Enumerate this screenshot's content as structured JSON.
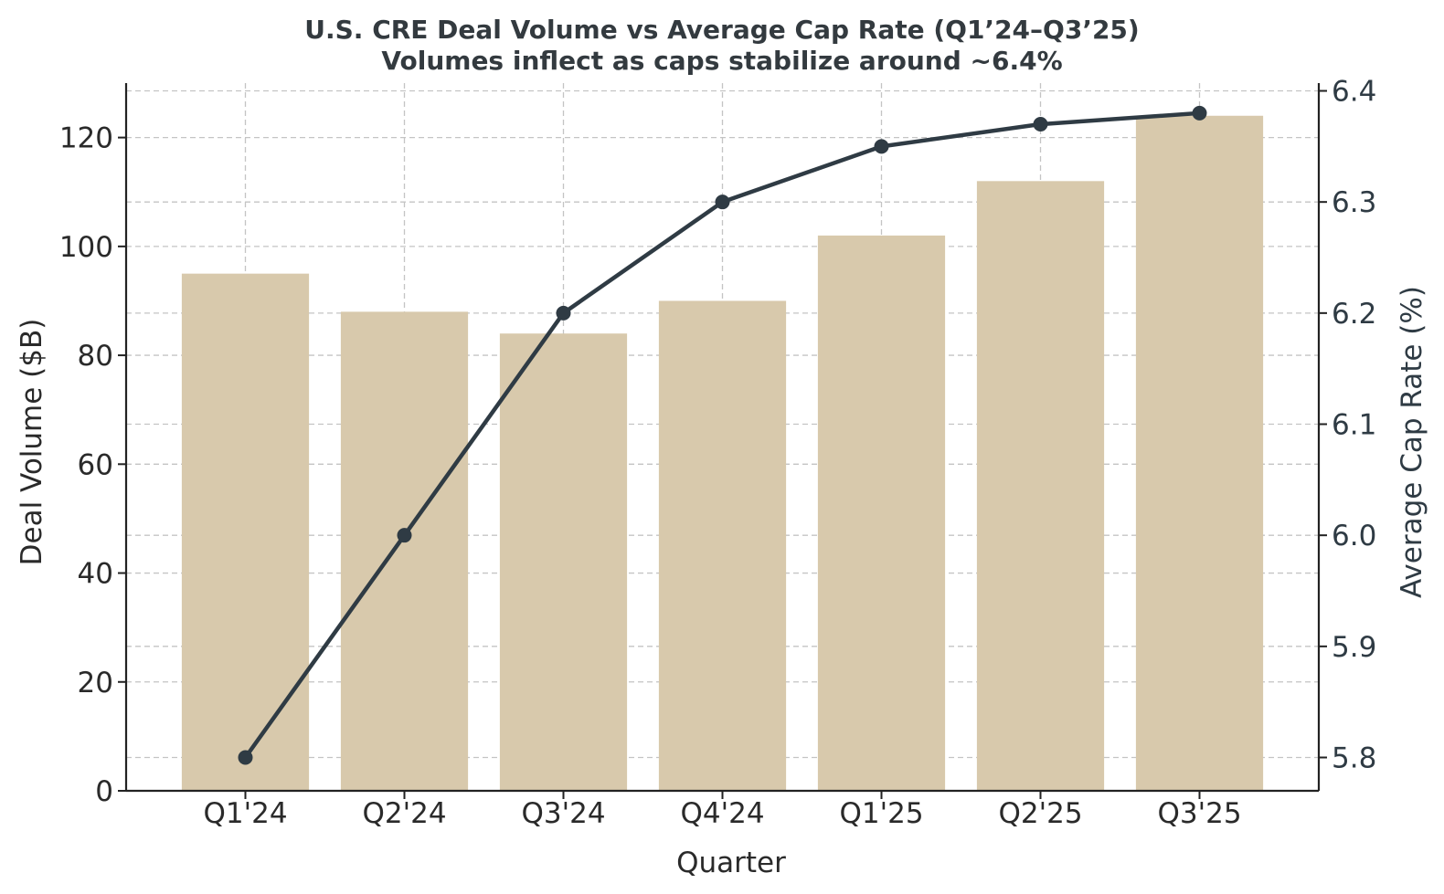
{
  "chart_data": {
    "type": "bar",
    "title": "U.S. CRE Deal Volume vs Average Cap Rate (Q1’24–Q3’25)",
    "subtitle": "Volumes inflect as caps stabilize around ~6.4%",
    "xlabel": "Quarter",
    "ylabel": "Deal Volume ($B)",
    "ylabel_right": "Average Cap Rate (%)",
    "categories": [
      "Q1'24",
      "Q2'24",
      "Q3'24",
      "Q4'24",
      "Q1'25",
      "Q2'25",
      "Q3'25"
    ],
    "series": [
      {
        "name": "Deal Volume ($B)",
        "type": "bar",
        "axis": "left",
        "values": [
          95,
          88,
          84,
          90,
          102,
          112,
          124
        ]
      },
      {
        "name": "Average Cap Rate (%)",
        "type": "line",
        "axis": "right",
        "values": [
          5.8,
          6.0,
          6.2,
          6.3,
          6.35,
          6.37,
          6.38
        ]
      }
    ],
    "ylim": [
      0,
      130
    ],
    "ylim_right": [
      5.77,
      6.407
    ],
    "yticks": [
      0,
      20,
      40,
      60,
      80,
      100,
      120
    ],
    "yticks_right": [
      5.8,
      5.9,
      6.0,
      6.1,
      6.2,
      6.3,
      6.4
    ],
    "grid": true,
    "colors": {
      "bar": "#d8c9ac",
      "line": "#2f3b44",
      "grid": "#c4c4c4",
      "text": "#333a3f"
    }
  }
}
